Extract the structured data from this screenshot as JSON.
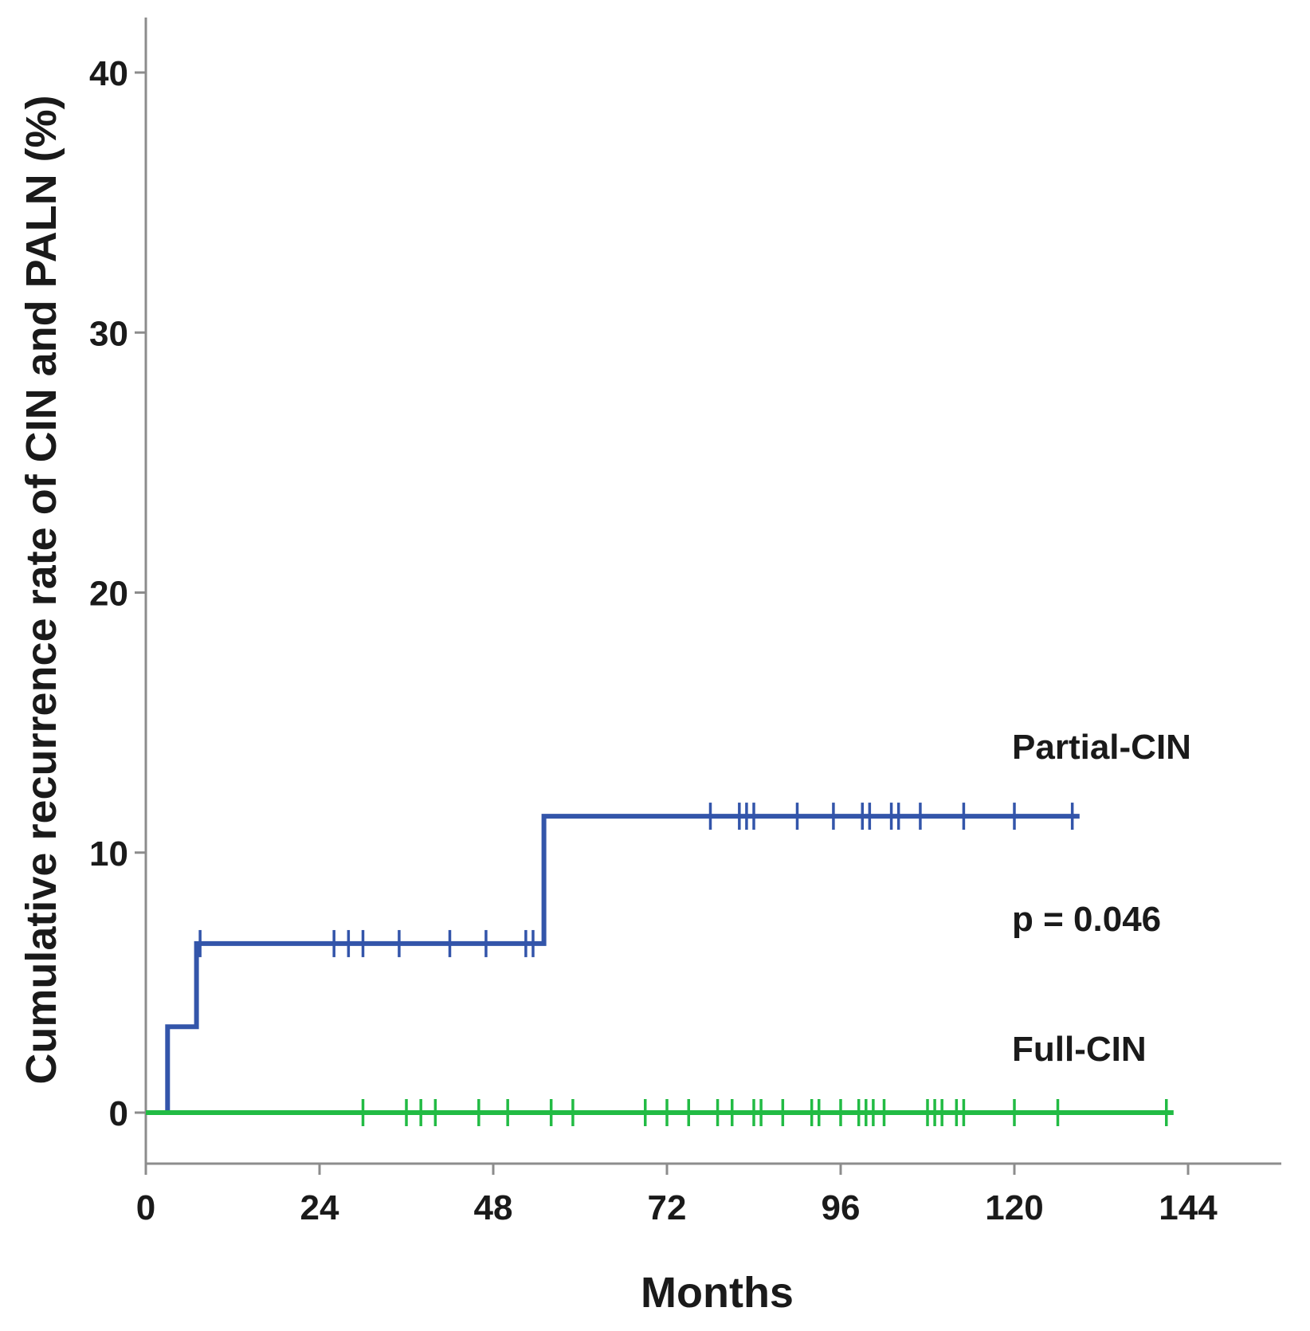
{
  "chart_data": {
    "type": "line",
    "subtype": "kaplan-meier cumulative incidence",
    "xlabel": "Months",
    "ylabel": "Cumulative recurrence rate of CIN and PALN (%)",
    "xlim": [
      0,
      158
    ],
    "ylim": [
      -2,
      42
    ],
    "xticks": [
      0,
      24,
      48,
      72,
      96,
      120,
      144
    ],
    "yticks": [
      0,
      10,
      20,
      30,
      40
    ],
    "annotations": [
      {
        "name": "partial-label",
        "text": "Partial-CIN"
      },
      {
        "name": "p-value",
        "text": "p = 0.046"
      },
      {
        "name": "full-label",
        "text": "Full-CIN"
      }
    ],
    "series": [
      {
        "name": "Partial-CIN",
        "color": "#3355aa",
        "steps": [
          [
            0,
            0
          ],
          [
            3,
            0
          ],
          [
            3,
            3.3
          ],
          [
            7,
            3.3
          ],
          [
            7,
            6.5
          ],
          [
            55,
            6.5
          ],
          [
            55,
            11.4
          ],
          [
            129,
            11.4
          ]
        ],
        "censored": [
          {
            "x": 7.5,
            "y": 6.5
          },
          {
            "x": 26,
            "y": 6.5
          },
          {
            "x": 28,
            "y": 6.5
          },
          {
            "x": 30,
            "y": 6.5
          },
          {
            "x": 35,
            "y": 6.5
          },
          {
            "x": 42,
            "y": 6.5
          },
          {
            "x": 47,
            "y": 6.5
          },
          {
            "x": 52.5,
            "y": 6.5
          },
          {
            "x": 53.5,
            "y": 6.5
          },
          {
            "x": 78,
            "y": 11.4
          },
          {
            "x": 82,
            "y": 11.4
          },
          {
            "x": 83,
            "y": 11.4
          },
          {
            "x": 84,
            "y": 11.4
          },
          {
            "x": 90,
            "y": 11.4
          },
          {
            "x": 95,
            "y": 11.4
          },
          {
            "x": 99,
            "y": 11.4
          },
          {
            "x": 100,
            "y": 11.4
          },
          {
            "x": 103,
            "y": 11.4
          },
          {
            "x": 104,
            "y": 11.4
          },
          {
            "x": 107,
            "y": 11.4
          },
          {
            "x": 113,
            "y": 11.4
          },
          {
            "x": 120,
            "y": 11.4
          },
          {
            "x": 128,
            "y": 11.4
          }
        ]
      },
      {
        "name": "Full-CIN",
        "color": "#22bb44",
        "steps": [
          [
            0,
            0
          ],
          [
            142,
            0
          ]
        ],
        "censored": [
          {
            "x": 30,
            "y": 0
          },
          {
            "x": 36,
            "y": 0
          },
          {
            "x": 38,
            "y": 0
          },
          {
            "x": 40,
            "y": 0
          },
          {
            "x": 46,
            "y": 0
          },
          {
            "x": 50,
            "y": 0
          },
          {
            "x": 56,
            "y": 0
          },
          {
            "x": 59,
            "y": 0
          },
          {
            "x": 69,
            "y": 0
          },
          {
            "x": 72,
            "y": 0
          },
          {
            "x": 75,
            "y": 0
          },
          {
            "x": 79,
            "y": 0
          },
          {
            "x": 81,
            "y": 0
          },
          {
            "x": 84,
            "y": 0
          },
          {
            "x": 85,
            "y": 0
          },
          {
            "x": 88,
            "y": 0
          },
          {
            "x": 92,
            "y": 0
          },
          {
            "x": 93,
            "y": 0
          },
          {
            "x": 96,
            "y": 0
          },
          {
            "x": 98.5,
            "y": 0
          },
          {
            "x": 99.5,
            "y": 0
          },
          {
            "x": 100.5,
            "y": 0
          },
          {
            "x": 102,
            "y": 0
          },
          {
            "x": 108,
            "y": 0
          },
          {
            "x": 109,
            "y": 0
          },
          {
            "x": 110,
            "y": 0
          },
          {
            "x": 112,
            "y": 0
          },
          {
            "x": 113,
            "y": 0
          },
          {
            "x": 120,
            "y": 0
          },
          {
            "x": 126,
            "y": 0
          },
          {
            "x": 141,
            "y": 0
          }
        ]
      }
    ]
  }
}
